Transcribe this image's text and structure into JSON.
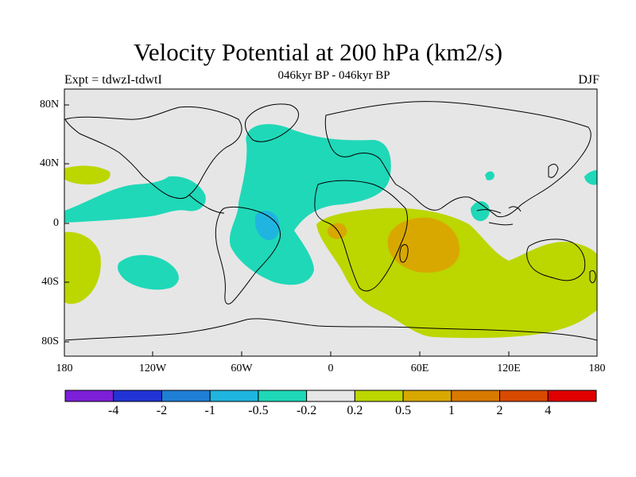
{
  "title": "Velocity Potential at 200 hPa (km2/s)",
  "subtitle": "046kyr BP - 046kyr BP",
  "left_label": "Expt = tdwzI-tdwtI",
  "right_label": "DJF",
  "map": {
    "background_color": "#e6e6e6",
    "lat_ticks": [
      "80N",
      "40N",
      "0",
      "40S",
      "80S"
    ],
    "lon_ticks": [
      "180",
      "120W",
      "60W",
      "0",
      "60E",
      "120E",
      "180"
    ]
  },
  "colorbar": {
    "colors": [
      "#7b1fd9",
      "#2233d6",
      "#1f7fd6",
      "#1fb5e0",
      "#1fd8b8",
      "#e6e6e6",
      "#bcd600",
      "#d8a800",
      "#d87a00",
      "#d84a00",
      "#e00000"
    ],
    "labels": [
      "-4",
      "-2",
      "-1",
      "-0.5",
      "-0.2",
      "0.2",
      "0.5",
      "1",
      "2",
      "4"
    ]
  }
}
